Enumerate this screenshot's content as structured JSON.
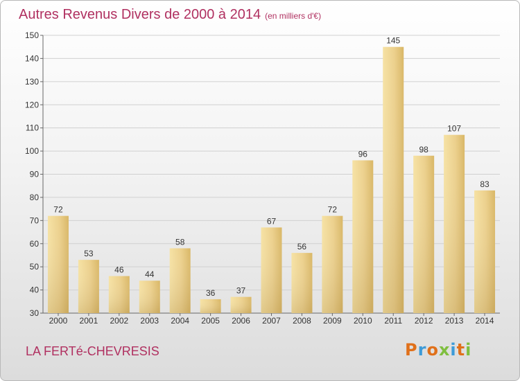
{
  "chart_data": {
    "type": "bar",
    "title": "Autres Revenus Divers de 2000 à 2014",
    "subtitle": "(en milliers d'€)",
    "categories": [
      "2000",
      "2001",
      "2002",
      "2003",
      "2004",
      "2005",
      "2006",
      "2007",
      "2008",
      "2009",
      "2010",
      "2011",
      "2012",
      "2013",
      "2014"
    ],
    "values": [
      72,
      53,
      46,
      44,
      58,
      36,
      37,
      67,
      56,
      72,
      96,
      145,
      98,
      107,
      83
    ],
    "ylim": [
      30,
      150
    ],
    "yticks": [
      30,
      40,
      50,
      60,
      70,
      80,
      90,
      100,
      110,
      120,
      130,
      140,
      150
    ],
    "grid": true,
    "bar_color": "#e8c97e"
  },
  "footer": {
    "place": "LA FERTé-CHEVRESIS",
    "logo": "Proxiti",
    "logo_colors": [
      "#e0701a",
      "#3d9bd8",
      "#e0701a",
      "#7fbf3f",
      "#3d9bd8",
      "#e0701a",
      "#7fbf3f"
    ]
  }
}
